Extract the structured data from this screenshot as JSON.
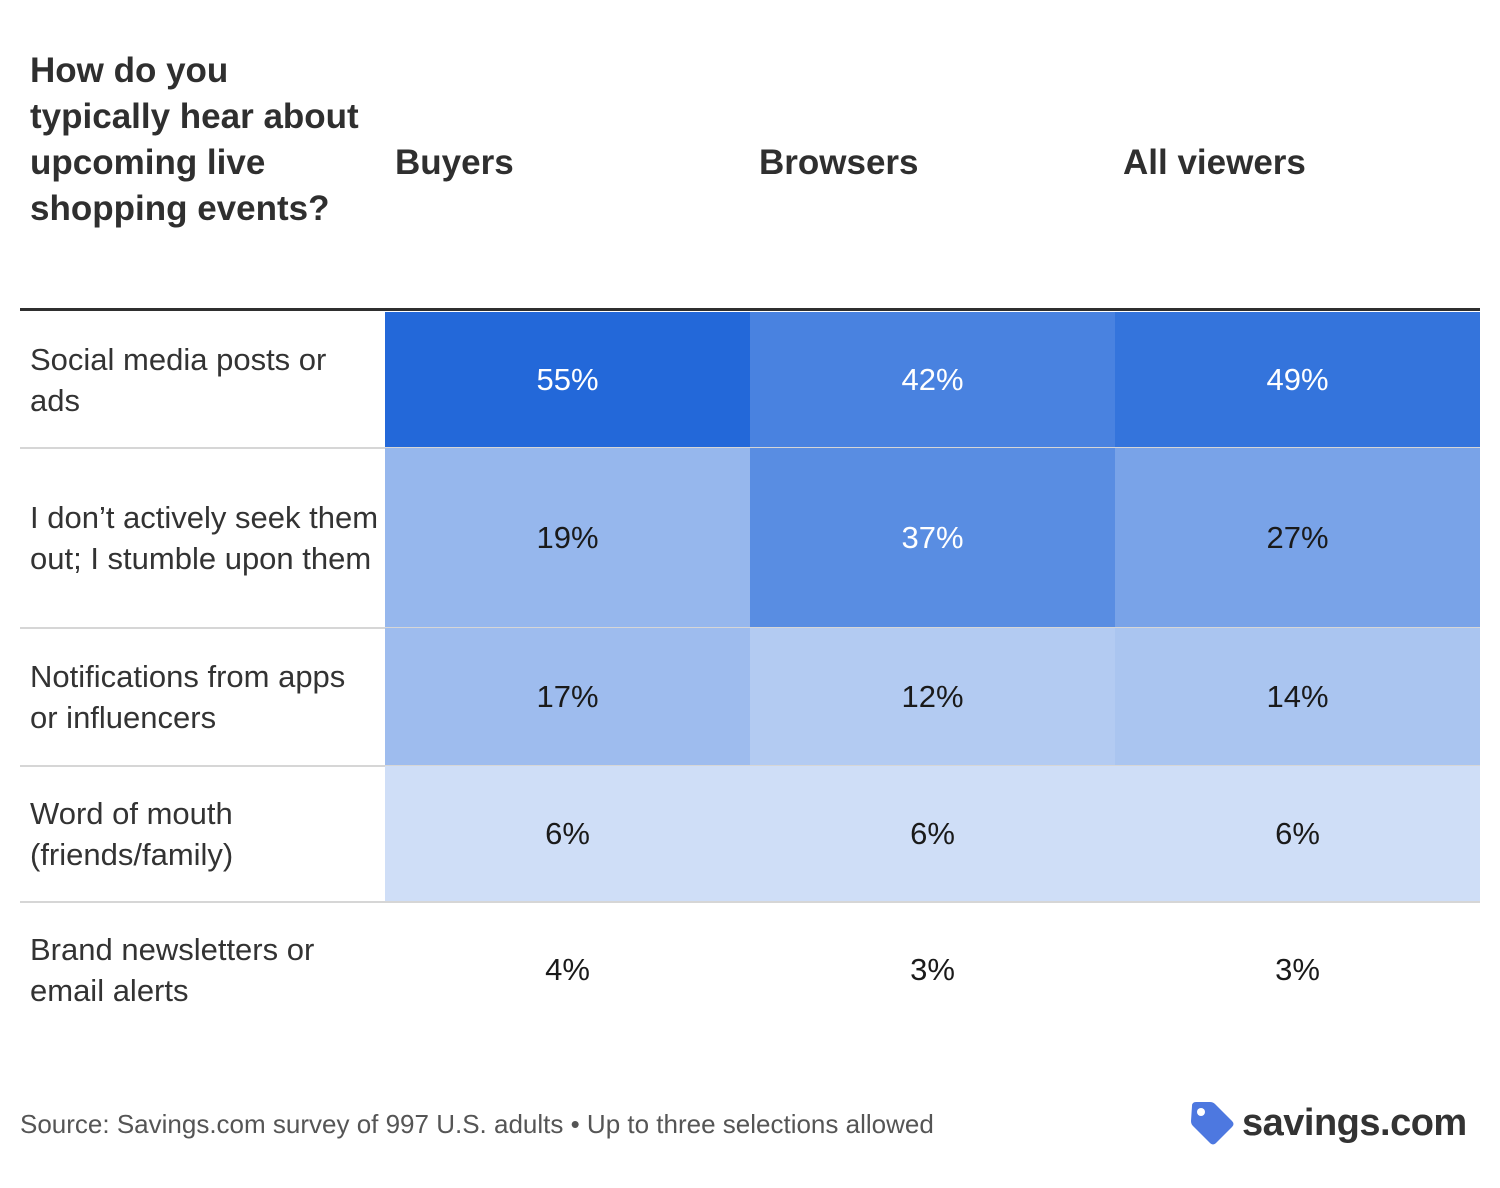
{
  "chart_data": {
    "type": "table",
    "title": "How do you typically hear about upcoming live shopping events?",
    "columns": [
      "Buyers",
      "Browsers",
      "All viewers"
    ],
    "rows": [
      {
        "label": "Social media posts or ads",
        "values": [
          "55%",
          "42%",
          "49%"
        ],
        "numeric": [
          55,
          42,
          49
        ]
      },
      {
        "label": "I don’t actively seek them out; I stumble upon them",
        "values": [
          "19%",
          "37%",
          "27%"
        ],
        "numeric": [
          19,
          37,
          27
        ]
      },
      {
        "label": "Notifications from apps or influencers",
        "values": [
          "17%",
          "12%",
          "14%"
        ],
        "numeric": [
          17,
          12,
          14
        ]
      },
      {
        "label": "Word of mouth (friends/family)",
        "values": [
          "6%",
          "6%",
          "6%"
        ],
        "numeric": [
          6,
          6,
          6
        ]
      },
      {
        "label": "Brand newsletters or email alerts",
        "values": [
          "4%",
          "3%",
          "3%"
        ],
        "numeric": [
          4,
          3,
          3
        ]
      }
    ],
    "heat_colors": {
      "high": "#2368d9",
      "low": "#ffffff",
      "text_dark": "#1a1a1a",
      "text_light": "#ffffff"
    }
  },
  "footer": {
    "source": "Source: Savings.com survey of 997 U.S. adults • Up to three selections allowed",
    "logo_text": "savings.com",
    "logo_icon": "price-tag-icon",
    "logo_color": "#4d78e0"
  }
}
